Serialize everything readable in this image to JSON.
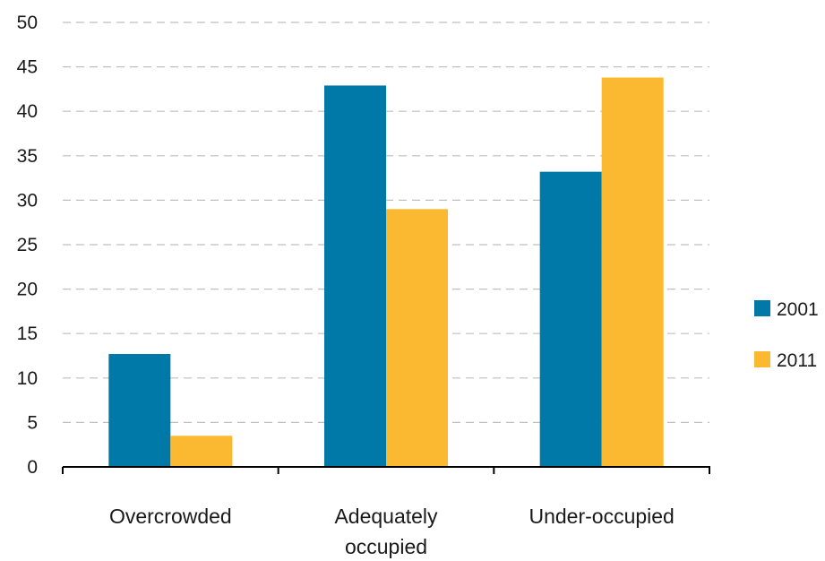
{
  "chart_data": {
    "type": "bar",
    "categories": [
      [
        "Overcrowded"
      ],
      [
        "Adequately",
        "occupied"
      ],
      [
        "Under-occupied"
      ]
    ],
    "series": [
      {
        "name": "2001",
        "values": [
          12.7,
          42.9,
          33.2
        ],
        "color": "#0079a8"
      },
      {
        "name": "2011",
        "values": [
          3.5,
          29.0,
          43.8
        ],
        "color": "#fbb931"
      }
    ],
    "ylim": [
      0,
      50
    ],
    "yticks": [
      0,
      5,
      10,
      15,
      20,
      25,
      30,
      35,
      40,
      45,
      50
    ],
    "grid": true,
    "legend_position": "right"
  }
}
